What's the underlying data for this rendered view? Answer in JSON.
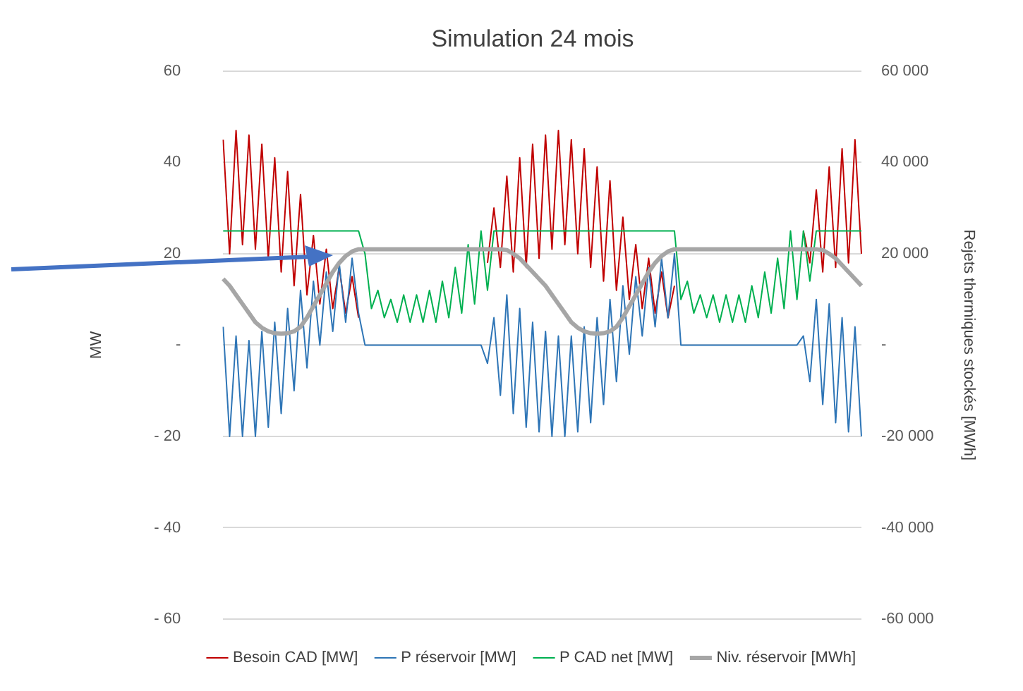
{
  "chart_data": {
    "type": "line",
    "title": "Simulation 24 mois",
    "ylabel": "MW",
    "y2label": "Rejets thermiques stockés [MWh]",
    "categories": [
      null,
      null,
      null,
      null,
      null,
      null,
      null,
      null,
      null,
      null,
      null,
      null,
      null,
      null,
      null,
      null,
      null,
      null,
      null,
      null,
      null,
      null,
      null,
      null,
      null,
      null,
      null,
      null,
      null,
      null,
      null,
      null,
      null,
      null,
      null,
      null,
      null,
      null,
      null,
      null,
      null,
      null,
      null,
      null,
      null,
      null,
      null,
      null,
      null,
      null,
      null,
      null,
      null,
      null,
      null,
      null,
      null,
      null,
      null,
      null,
      null,
      null,
      null,
      null,
      null,
      null,
      null,
      null,
      null,
      null,
      null,
      null,
      null,
      null,
      null,
      null,
      null,
      null,
      null,
      null,
      null,
      null,
      null,
      null,
      null,
      null,
      null,
      null,
      null,
      null,
      null,
      null,
      null,
      null,
      null,
      null,
      null,
      null,
      null,
      null
    ],
    "series": [
      {
        "name": "Besoin CAD [MW]",
        "color": "#c00000",
        "values": [
          45,
          20,
          47,
          22,
          46,
          21,
          44,
          19,
          41,
          16,
          38,
          13,
          33,
          11,
          24,
          9,
          21,
          8,
          17,
          7,
          15,
          6,
          null,
          null,
          null,
          null,
          null,
          null,
          null,
          null,
          null,
          null,
          null,
          null,
          null,
          null,
          null,
          null,
          null,
          null,
          null,
          18,
          30,
          17,
          37,
          16,
          41,
          17,
          44,
          19,
          46,
          21,
          47,
          22,
          45,
          20,
          43,
          17,
          39,
          14,
          36,
          12,
          28,
          10,
          22,
          8,
          19,
          7,
          16,
          6,
          13,
          null,
          null,
          null,
          null,
          null,
          null,
          null,
          null,
          null,
          null,
          null,
          null,
          null,
          null,
          null,
          null,
          null,
          null,
          null,
          25,
          18,
          34,
          16,
          39,
          17,
          43,
          18,
          45,
          20
        ]
      },
      {
        "name": "P réservoir [MW]",
        "color": "#2e75b6",
        "values": [
          4,
          -20,
          2,
          -20,
          1,
          -20,
          3,
          -18,
          5,
          -15,
          8,
          -10,
          12,
          -5,
          14,
          0,
          16,
          3,
          18,
          5,
          19,
          7,
          0,
          0,
          0,
          0,
          0,
          0,
          0,
          0,
          0,
          0,
          0,
          0,
          0,
          0,
          0,
          0,
          0,
          0,
          0,
          -4,
          6,
          -11,
          11,
          -15,
          8,
          -18,
          5,
          -19,
          3,
          -20,
          2,
          -20,
          2,
          -19,
          4,
          -17,
          6,
          -13,
          10,
          -8,
          13,
          -2,
          15,
          2,
          17,
          4,
          19,
          6,
          20,
          0,
          0,
          0,
          0,
          0,
          0,
          0,
          0,
          0,
          0,
          0,
          0,
          0,
          0,
          0,
          0,
          0,
          0,
          0,
          2,
          -8,
          10,
          -13,
          9,
          -17,
          6,
          -19,
          4,
          -20
        ]
      },
      {
        "name": "P CAD net [MW]",
        "color": "#00b050",
        "values": [
          25,
          25,
          25,
          25,
          25,
          25,
          25,
          25,
          25,
          25,
          25,
          25,
          25,
          25,
          25,
          25,
          25,
          25,
          25,
          25,
          25,
          25,
          20,
          8,
          12,
          6,
          10,
          5,
          11,
          5,
          11,
          5,
          12,
          5,
          14,
          6,
          17,
          7,
          22,
          9,
          25,
          12,
          25,
          25,
          25,
          25,
          25,
          25,
          25,
          25,
          25,
          25,
          25,
          25,
          25,
          25,
          25,
          25,
          25,
          25,
          25,
          25,
          25,
          25,
          25,
          25,
          25,
          25,
          25,
          25,
          25,
          10,
          14,
          7,
          11,
          6,
          11,
          5,
          11,
          5,
          11,
          5,
          13,
          6,
          16,
          7,
          19,
          8,
          25,
          10,
          25,
          14,
          25,
          25,
          25,
          25,
          25,
          25,
          25,
          25
        ]
      },
      {
        "name": "Niv. réservoir [MWh]",
        "color": "#a6a6a6",
        "axis": "y2",
        "values": [
          14500,
          13000,
          11000,
          9000,
          7000,
          5000,
          3800,
          3000,
          2600,
          2500,
          2600,
          3000,
          4000,
          6000,
          8500,
          11000,
          13500,
          16000,
          18000,
          19500,
          20500,
          21000,
          21000,
          21000,
          21000,
          21000,
          21000,
          21000,
          21000,
          21000,
          21000,
          21000,
          21000,
          21000,
          21000,
          21000,
          21000,
          21000,
          21000,
          21000,
          21000,
          21000,
          21000,
          21000,
          20800,
          20000,
          19000,
          17500,
          16000,
          14500,
          13000,
          11000,
          9000,
          7000,
          5000,
          3800,
          3000,
          2600,
          2500,
          2600,
          3000,
          4000,
          6000,
          8500,
          11000,
          13500,
          16000,
          18000,
          19500,
          20500,
          21000,
          21000,
          21000,
          21000,
          21000,
          21000,
          21000,
          21000,
          21000,
          21000,
          21000,
          21000,
          21000,
          21000,
          21000,
          21000,
          21000,
          21000,
          21000,
          21000,
          21000,
          21000,
          21000,
          20800,
          20000,
          19000,
          17500,
          16000,
          14500,
          13000
        ]
      }
    ],
    "ylim": [
      -60,
      60
    ],
    "yticks": [
      {
        "value": -60,
        "label": "- 60"
      },
      {
        "value": -40,
        "label": "- 40"
      },
      {
        "value": -20,
        "label": "- 20"
      },
      {
        "value": 0,
        "label": "-"
      },
      20,
      40,
      60
    ],
    "y2lim": [
      -60000,
      60000
    ],
    "y2ticks": [
      {
        "value": -60000,
        "label": "-60 000"
      },
      {
        "value": -40000,
        "label": "-40 000"
      },
      {
        "value": -20000,
        "label": "-20 000"
      },
      {
        "value": 0,
        "label": "-"
      },
      {
        "value": 20000,
        "label": "20 000"
      },
      {
        "value": 40000,
        "label": "40 000"
      },
      {
        "value": 60000,
        "label": "60 000"
      }
    ],
    "grid": "y",
    "legend": "bottom",
    "tick_labels": "y",
    "marker": "none",
    "line_style": "solid"
  }
}
